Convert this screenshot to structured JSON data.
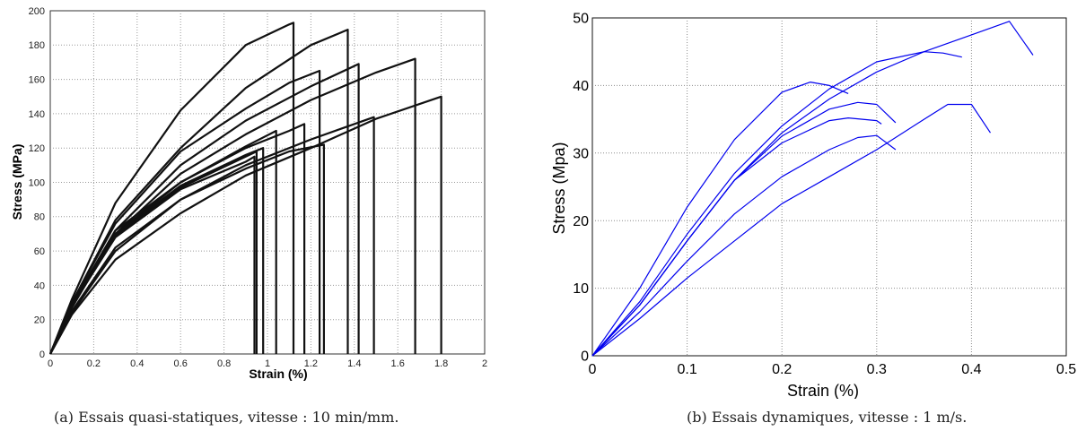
{
  "chart_data": [
    {
      "type": "line",
      "panel": "(a)",
      "caption": "(a) Essais quasi-statiques, vitesse : 10 min/mm.",
      "title": "",
      "xlabel": "Strain (%)",
      "ylabel": "Stress (MPa)",
      "xlim": [
        0,
        2
      ],
      "ylim": [
        0,
        200
      ],
      "xticks": [
        "0",
        "0.2",
        "0.4",
        "0.6",
        "0.8",
        "1",
        "1.2",
        "1.4",
        "1.6",
        "1.8",
        "2"
      ],
      "yticks": [
        "0",
        "20",
        "40",
        "60",
        "80",
        "100",
        "120",
        "140",
        "160",
        "180",
        "200"
      ],
      "grid": true,
      "line_color": "#111111",
      "series": [
        {
          "x": [
            0,
            0.1,
            0.3,
            0.6,
            0.9,
            1.1,
            1.12,
            1.12
          ],
          "y": [
            0,
            32,
            88,
            142,
            180,
            192,
            193,
            0
          ]
        },
        {
          "x": [
            0,
            0.1,
            0.3,
            0.6,
            0.9,
            1.2,
            1.37,
            1.37
          ],
          "y": [
            0,
            30,
            78,
            120,
            155,
            180,
            189,
            0
          ]
        },
        {
          "x": [
            0,
            0.1,
            0.3,
            0.6,
            0.9,
            1.1,
            1.24,
            1.24
          ],
          "y": [
            0,
            30,
            76,
            118,
            143,
            158,
            165,
            0
          ]
        },
        {
          "x": [
            0,
            0.1,
            0.3,
            0.6,
            0.9,
            1.2,
            1.42,
            1.42
          ],
          "y": [
            0,
            28,
            72,
            110,
            136,
            156,
            169,
            0
          ]
        },
        {
          "x": [
            0,
            0.1,
            0.3,
            0.6,
            0.9,
            1.2,
            1.5,
            1.68,
            1.68
          ],
          "y": [
            0,
            27,
            70,
            105,
            128,
            148,
            164,
            172,
            0
          ]
        },
        {
          "x": [
            0,
            0.1,
            0.3,
            0.6,
            0.9,
            1.2,
            1.5,
            1.8,
            1.8
          ],
          "y": [
            0,
            23,
            55,
            82,
            104,
            120,
            137,
            150,
            0
          ]
        },
        {
          "x": [
            0,
            0.1,
            0.3,
            0.6,
            0.9,
            1.2,
            1.49,
            1.49
          ],
          "y": [
            0,
            24,
            60,
            90,
            110,
            125,
            138,
            0
          ]
        },
        {
          "x": [
            0,
            0.1,
            0.3,
            0.6,
            0.9,
            1.1,
            1.17,
            1.17
          ],
          "y": [
            0,
            28,
            70,
            100,
            120,
            130,
            134,
            0
          ]
        },
        {
          "x": [
            0,
            0.1,
            0.3,
            0.6,
            0.9,
            1.1,
            1.26,
            1.26
          ],
          "y": [
            0,
            25,
            62,
            90,
            108,
            118,
            122,
            0
          ]
        },
        {
          "x": [
            0,
            0.1,
            0.3,
            0.6,
            0.9,
            1.04,
            1.04
          ],
          "y": [
            0,
            29,
            72,
            100,
            121,
            130,
            0
          ]
        },
        {
          "x": [
            0,
            0.1,
            0.3,
            0.6,
            0.9,
            0.98,
            0.98
          ],
          "y": [
            0,
            29,
            70,
            98,
            116,
            120,
            0
          ]
        },
        {
          "x": [
            0,
            0.1,
            0.3,
            0.6,
            0.9,
            0.95,
            0.95
          ],
          "y": [
            0,
            28,
            69,
            97,
            115,
            118,
            0
          ]
        },
        {
          "x": [
            0,
            0.1,
            0.3,
            0.6,
            0.9,
            0.94,
            0.94
          ],
          "y": [
            0,
            28,
            68,
            96,
            112,
            115,
            0
          ]
        }
      ]
    },
    {
      "type": "line",
      "panel": "(b)",
      "caption": "(b) Essais dynamiques, vitesse : 1 m/s.",
      "title": "",
      "xlabel": "Strain (%)",
      "ylabel": "Stress (Mpa)",
      "xlim": [
        0,
        0.5
      ],
      "ylim": [
        0,
        50
      ],
      "xticks": [
        "0",
        "0.1",
        "0.2",
        "0.3",
        "0.4",
        "0.5"
      ],
      "yticks": [
        "0",
        "10",
        "20",
        "30",
        "40",
        "50"
      ],
      "grid": true,
      "line_color": "#0000ee",
      "series": [
        {
          "x": [
            0,
            0.05,
            0.1,
            0.15,
            0.2,
            0.23,
            0.25,
            0.27
          ],
          "y": [
            0,
            10,
            22,
            32,
            39,
            40.5,
            40,
            38.8
          ]
        },
        {
          "x": [
            0,
            0.05,
            0.1,
            0.15,
            0.2,
            0.25,
            0.3,
            0.35,
            0.37,
            0.39
          ],
          "y": [
            0,
            8,
            18,
            27,
            34,
            39.5,
            43.5,
            45,
            44.8,
            44.2
          ]
        },
        {
          "x": [
            0,
            0.05,
            0.1,
            0.15,
            0.2,
            0.25,
            0.3,
            0.35,
            0.4,
            0.44,
            0.465
          ],
          "y": [
            0,
            7.5,
            17,
            26,
            33,
            38,
            42,
            45,
            47.5,
            49.5,
            44.5
          ]
        },
        {
          "x": [
            0,
            0.05,
            0.1,
            0.15,
            0.2,
            0.25,
            0.28,
            0.3,
            0.32
          ],
          "y": [
            0,
            7.5,
            17,
            26,
            32.5,
            36.5,
            37.5,
            37.2,
            34.5
          ]
        },
        {
          "x": [
            0,
            0.05,
            0.1,
            0.15,
            0.2,
            0.25,
            0.27,
            0.3,
            0.305
          ],
          "y": [
            0,
            7.5,
            17,
            26,
            31.5,
            34.8,
            35.2,
            34.8,
            34.3
          ]
        },
        {
          "x": [
            0,
            0.05,
            0.1,
            0.15,
            0.2,
            0.25,
            0.28,
            0.3,
            0.32
          ],
          "y": [
            0,
            6.5,
            14,
            21,
            26.5,
            30.5,
            32.3,
            32.6,
            30.5
          ]
        },
        {
          "x": [
            0,
            0.05,
            0.1,
            0.15,
            0.2,
            0.25,
            0.3,
            0.35,
            0.375,
            0.4,
            0.42
          ],
          "y": [
            0,
            5.5,
            11.5,
            17,
            22.5,
            26.5,
            30.5,
            35,
            37.2,
            37.2,
            33
          ]
        }
      ]
    }
  ]
}
